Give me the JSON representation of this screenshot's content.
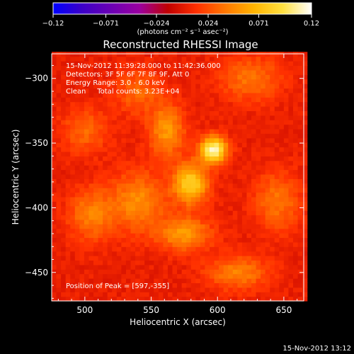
{
  "chart_data": {
    "type": "heatmap",
    "title": "Reconstructed RHESSI Image",
    "xlabel": "Heliocentric X (arcsec)",
    "ylabel": "Heliocentric Y (arcsec)",
    "xlim": [
      475,
      665
    ],
    "ylim": [
      -472,
      -281
    ],
    "x_ticks": [
      500,
      550,
      600,
      650
    ],
    "y_ticks": [
      -300,
      -350,
      -400,
      -450
    ],
    "x_tick_labels": [
      "500",
      "550",
      "600",
      "650"
    ],
    "y_tick_labels": [
      "−300",
      "−350",
      "−400",
      "−450"
    ],
    "colorbar": {
      "range": [
        -0.12,
        0.12
      ],
      "ticks": [
        -0.12,
        -0.071,
        -0.024,
        0.024,
        0.071,
        0.12
      ],
      "tick_labels": [
        "−0.12",
        "−0.071",
        "−0.024",
        "0.024",
        "0.071",
        "0.12"
      ],
      "unit_label": "(photons cm⁻² s⁻¹ asec⁻²)",
      "colormap": [
        "#0000ff",
        "#3c00c8",
        "#6a00b4",
        "#9a00a0",
        "#c00000",
        "#ff3000",
        "#ff7800",
        "#ffb400",
        "#ffe040",
        "#ffffff"
      ]
    },
    "annotations": [
      "15-Nov-2012 11:39:28.000 to 11:42:36.000",
      "Detectors: 3F 5F 6F 7F 8F 9F, Att 0",
      "Energy Range: 3.0 - 6.0 keV",
      "Clean     Total counts: 3.23E+04"
    ],
    "peak_label": "Position of Peak = [597,-355]",
    "peak": [
      597,
      -355
    ],
    "sources": [
      {
        "x": 597,
        "y": -355,
        "amp": 0.11,
        "sx": 7,
        "sy": 7
      },
      {
        "x": 580,
        "y": -381,
        "amp": 0.08,
        "sx": 9,
        "sy": 11
      },
      {
        "x": 562,
        "y": -340,
        "amp": 0.05,
        "sx": 9,
        "sy": 14
      },
      {
        "x": 575,
        "y": -420,
        "amp": 0.05,
        "sx": 14,
        "sy": 9
      },
      {
        "x": 540,
        "y": -395,
        "amp": 0.045,
        "sx": 14,
        "sy": 16
      },
      {
        "x": 505,
        "y": -405,
        "amp": 0.04,
        "sx": 12,
        "sy": 14
      },
      {
        "x": 615,
        "y": -450,
        "amp": 0.04,
        "sx": 16,
        "sy": 9
      },
      {
        "x": 645,
        "y": -395,
        "amp": 0.035,
        "sx": 12,
        "sy": 16
      },
      {
        "x": 625,
        "y": -300,
        "amp": 0.035,
        "sx": 16,
        "sy": 12
      },
      {
        "x": 540,
        "y": -310,
        "amp": 0.03,
        "sx": 12,
        "sy": 12
      },
      {
        "x": 500,
        "y": -340,
        "amp": 0.03,
        "sx": 12,
        "sy": 12
      }
    ]
  },
  "footer": {
    "timestamp": "15-Nov-2012 13:12"
  }
}
